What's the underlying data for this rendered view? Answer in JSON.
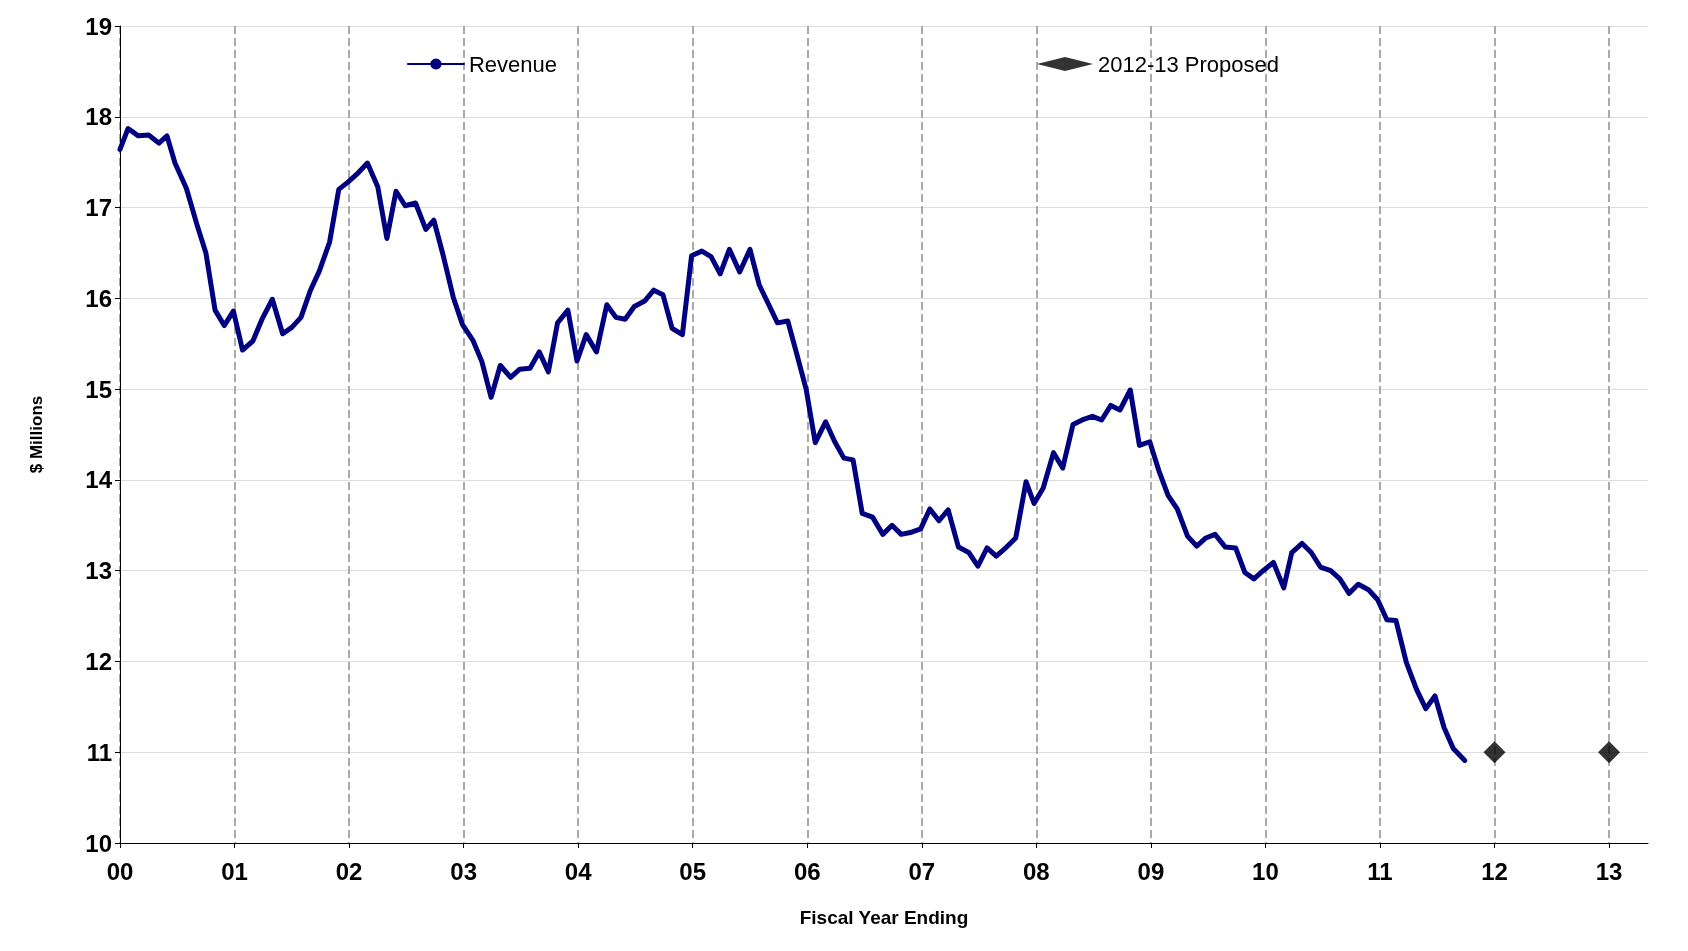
{
  "chart_data": {
    "type": "line",
    "xlabel": "Fiscal Year Ending",
    "ylabel": "$ Millions",
    "xlim": [
      0,
      13.34
    ],
    "ylim": [
      10,
      19
    ],
    "xticks": [
      {
        "value": 0,
        "label": "00"
      },
      {
        "value": 1,
        "label": "01"
      },
      {
        "value": 2,
        "label": "02"
      },
      {
        "value": 3,
        "label": "03"
      },
      {
        "value": 4,
        "label": "04"
      },
      {
        "value": 5,
        "label": "05"
      },
      {
        "value": 6,
        "label": "06"
      },
      {
        "value": 7,
        "label": "07"
      },
      {
        "value": 8,
        "label": "08"
      },
      {
        "value": 9,
        "label": "09"
      },
      {
        "value": 10,
        "label": "10"
      },
      {
        "value": 11,
        "label": "11"
      },
      {
        "value": 12,
        "label": "12"
      },
      {
        "value": 13,
        "label": "13"
      }
    ],
    "yticks": [
      10,
      11,
      12,
      13,
      14,
      15,
      16,
      17,
      18,
      19
    ],
    "grid": true,
    "legend": "top",
    "series": [
      {
        "name": "Revenue",
        "color": "#000080",
        "marker": "none",
        "x": [
          0,
          0.07,
          0.16,
          0.25,
          0.34,
          0.41,
          0.48,
          0.58,
          0.67,
          0.75,
          0.83,
          0.91,
          0.99,
          1.07,
          1.16,
          1.24,
          1.33,
          1.42,
          1.5,
          1.58,
          1.66,
          1.74,
          1.83,
          1.91,
          1.99,
          2.07,
          2.16,
          2.25,
          2.33,
          2.41,
          2.49,
          2.58,
          2.67,
          2.74,
          2.82,
          2.91,
          2.99,
          3.08,
          3.16,
          3.24,
          3.32,
          3.41,
          3.49,
          3.58,
          3.66,
          3.74,
          3.82,
          3.91,
          3.99,
          4.07,
          4.16,
          4.25,
          4.33,
          4.41,
          4.49,
          4.58,
          4.66,
          4.74,
          4.82,
          4.91,
          4.99,
          5.08,
          5.16,
          5.24,
          5.32,
          5.41,
          5.5,
          5.58,
          5.66,
          5.74,
          5.83,
          5.91,
          5.99,
          6.07,
          6.16,
          6.24,
          6.32,
          6.4,
          6.48,
          6.57,
          6.66,
          6.74,
          6.82,
          6.9,
          6.99,
          7.07,
          7.15,
          7.23,
          7.32,
          7.41,
          7.49,
          7.57,
          7.65,
          7.74,
          7.82,
          7.91,
          7.98,
          8.06,
          8.15,
          8.23,
          8.32,
          8.4,
          8.49,
          8.57,
          8.65,
          8.73,
          8.82,
          8.9,
          8.99,
          9.07,
          9.15,
          9.23,
          9.32,
          9.4,
          9.48,
          9.56,
          9.65,
          9.74,
          9.82,
          9.9,
          9.98,
          10.07,
          10.16,
          10.23,
          10.32,
          10.4,
          10.48,
          10.57,
          10.65,
          10.73,
          10.81,
          10.9,
          10.98,
          11.06,
          11.14,
          11.23,
          11.32,
          11.4,
          11.48,
          11.56,
          11.64,
          11.74
        ],
        "values": [
          17.64,
          17.87,
          17.79,
          17.8,
          17.71,
          17.79,
          17.49,
          17.21,
          16.82,
          16.5,
          15.87,
          15.7,
          15.86,
          15.43,
          15.53,
          15.77,
          15.99,
          15.61,
          15.68,
          15.79,
          16.08,
          16.3,
          16.62,
          17.2,
          17.28,
          17.37,
          17.49,
          17.23,
          16.66,
          17.18,
          17.02,
          17.05,
          16.76,
          16.86,
          16.48,
          16.01,
          15.71,
          15.54,
          15.3,
          14.91,
          15.26,
          15.13,
          15.22,
          15.23,
          15.41,
          15.19,
          15.73,
          15.87,
          15.31,
          15.6,
          15.41,
          15.93,
          15.79,
          15.77,
          15.91,
          15.97,
          16.09,
          16.04,
          15.67,
          15.6,
          16.47,
          16.52,
          16.46,
          16.27,
          16.54,
          16.29,
          16.54,
          16.15,
          15.94,
          15.73,
          15.75,
          15.38,
          15,
          14.41,
          14.64,
          14.42,
          14.24,
          14.22,
          13.63,
          13.59,
          13.4,
          13.5,
          13.4,
          13.42,
          13.46,
          13.68,
          13.55,
          13.67,
          13.26,
          13.2,
          13.05,
          13.25,
          13.16,
          13.26,
          13.36,
          13.98,
          13.74,
          13.91,
          14.3,
          14.13,
          14.61,
          14.66,
          14.7,
          14.66,
          14.82,
          14.77,
          14.99,
          14.38,
          14.42,
          14.1,
          13.83,
          13.68,
          13.38,
          13.27,
          13.36,
          13.4,
          13.26,
          13.25,
          12.98,
          12.91,
          13,
          13.09,
          12.81,
          13.2,
          13.3,
          13.2,
          13.04,
          13,
          12.91,
          12.75,
          12.85,
          12.79,
          12.68,
          12.46,
          12.45,
          11.99,
          11.69,
          11.48,
          11.62,
          11.27,
          11.04,
          10.91
        ]
      },
      {
        "name": "2012-13 Proposed",
        "type": "scatter",
        "color": "#000000",
        "marker": "diamond",
        "x": [
          12,
          13
        ],
        "values": [
          11,
          11
        ]
      }
    ]
  }
}
